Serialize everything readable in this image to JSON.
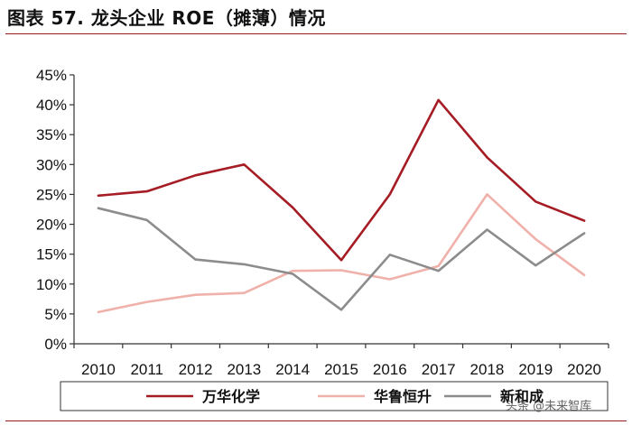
{
  "title": "图表 57. 龙头企业 ROE（摊薄）情况",
  "watermark": "头条 @未来智库",
  "chart_data": {
    "type": "line",
    "x": [
      "2010",
      "2011",
      "2012",
      "2013",
      "2014",
      "2015",
      "2016",
      "2017",
      "2018",
      "2019",
      "2020"
    ],
    "ylim": [
      0,
      45
    ],
    "yticks": [
      0,
      5,
      10,
      15,
      20,
      25,
      30,
      35,
      40,
      45
    ],
    "ytick_labels": [
      "0%",
      "5%",
      "10%",
      "15%",
      "20%",
      "25%",
      "30%",
      "35%",
      "40%",
      "45%"
    ],
    "grid": false,
    "legend_position": "bottom",
    "series": [
      {
        "name": "万华化学",
        "color": "#a51c24",
        "values": [
          24.8,
          25.5,
          28.2,
          30.0,
          22.8,
          14.0,
          25.0,
          40.8,
          31.2,
          23.8,
          20.6
        ]
      },
      {
        "name": "华鲁恒升",
        "color": "#f0b1aa",
        "values": [
          5.3,
          7.0,
          8.2,
          8.5,
          12.2,
          12.3,
          10.8,
          13.0,
          25.0,
          17.5,
          11.5
        ]
      },
      {
        "name": "新和成",
        "color": "#8c8c8c",
        "values": [
          22.7,
          20.7,
          14.1,
          13.3,
          11.7,
          5.7,
          14.9,
          12.2,
          19.1,
          13.1,
          18.5
        ]
      }
    ]
  }
}
